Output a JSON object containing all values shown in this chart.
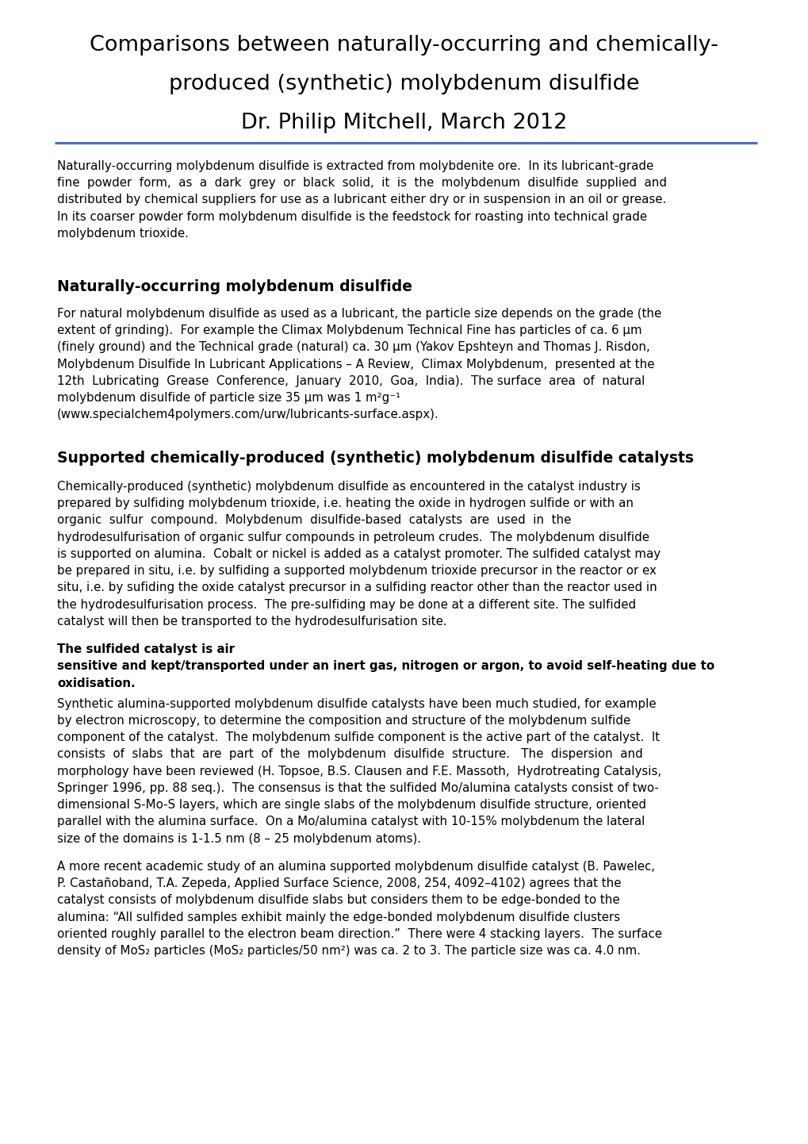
{
  "title_line1": "Comparisons between naturally-occurring and chemically-",
  "title_line2": "produced (synthetic) molybdenum disulfide",
  "title_line3": "Dr. Philip Mitchell, March 2012",
  "separator_color": "#4472C4",
  "background_color": "#ffffff",
  "text_color": "#000000",
  "intro_paragraph": "Naturally-occurring molybdenum disulfide is extracted from molybdenite ore.  In its lubricant-grade\nfine  powder  form,  as  a  dark  grey  or  black  solid,  it  is  the  molybdenum  disulfide  supplied  and\ndistributed by chemical suppliers for use as a lubricant either dry or in suspension in an oil or grease.\nIn its coarser powder form molybdenum disulfide is the feedstock for roasting into technical grade\nmolybdenum trioxide.",
  "section1_heading": "Naturally-occurring molybdenum disulfide",
  "section1_body": "For natural molybdenum disulfide as used as a lubricant, the particle size depends on the grade (the\nextent of grinding).  For example the Climax Molybdenum Technical Fine has particles of ca. 6 μm\n(finely ground) and the Technical grade (natural) ca. 30 μm (Yakov Epshteyn and Thomas J. Risdon,\nMolybdenum Disulfide In Lubricant Applications – A Review,  Climax Molybdenum,  presented at the\n12th  Lubricating  Grease  Conference,  January  2010,  Goa,  India).  The surface  area  of  natural\nmolybdenum disulfide of particle size 35 μm was 1 m²g⁻¹\n(www.specialchem4polymers.com/urw/lubricants-surface.aspx).",
  "section2_heading": "Supported chemically-produced (synthetic) molybdenum disulfide catalysts",
  "section2_body_normal": "Chemically-produced (synthetic) molybdenum disulfide as encountered in the catalyst industry is\nprepared by sulfiding molybdenum trioxide, i.e. heating the oxide in hydrogen sulfide or with an\norganic  sulfur  compound.  Molybdenum  disulfide-based  catalysts  are  used  in  the\nhydrodesulfurisation of organic sulfur compounds in petroleum crudes.  The molybdenum disulfide\nis supported on alumina.  Cobalt or nickel is added as a catalyst promoter. The sulfided catalyst may\nbe prepared in situ, i.e. by sulfiding a supported molybdenum trioxide precursor in the reactor or ex\nsitu, i.e. by sufiding the oxide catalyst precursor in a sulfiding reactor other than the reactor used in\nthe hydrodesulfurisation process.  The pre-sulfiding may be done at a different site. The sulfided\ncatalyst will then be transported to the hydrodesulfurisation site.  ",
  "section2_body_bold": "The sulfided catalyst is air\nsensitive and kept/transported under an inert gas, nitrogen or argon, to avoid self-heating due to\noxidisation.",
  "section2_para2": "Synthetic alumina-supported molybdenum disulfide catalysts have been much studied, for example\nby electron microscopy, to determine the composition and structure of the molybdenum sulfide\ncomponent of the catalyst.  The molybdenum sulfide component is the active part of the catalyst.  It\nconsists  of  slabs  that  are  part  of  the  molybdenum  disulfide  structure.   The  dispersion  and\nmorphology have been reviewed (H. Topsoe, B.S. Clausen and F.E. Massoth,  Hydrotreating Catalysis,\nSpringer 1996, pp. 88 seq.).  The consensus is that the sulfided Mo/alumina catalysts consist of two-\ndimensional S-Mo-S layers, which are single slabs of the molybdenum disulfide structure, oriented\nparallel with the alumina surface.  On a Mo/alumina catalyst with 10-15% molybdenum the lateral\nsize of the domains is 1-1.5 nm (8 – 25 molybdenum atoms).",
  "section2_para3": "A more recent academic study of an alumina supported molybdenum disulfide catalyst (B. Pawelec,\nP. Castañoband, T.A. Zepeda, Applied Surface Science, 2008, 254, 4092–4102) agrees that the\ncatalyst consists of molybdenum disulfide slabs but considers them to be edge-bonded to the\nalumina: “All sulfided samples exhibit mainly the edge-bonded molybdenum disulfide clusters\noriented roughly parallel to the electron beam direction.”  There were 4 stacking layers.  The surface\ndensity of MoS₂ particles (MoS₂ particles/50 nm²) was ca. 2 to 3. The particle size was ca. 4.0 nm."
}
